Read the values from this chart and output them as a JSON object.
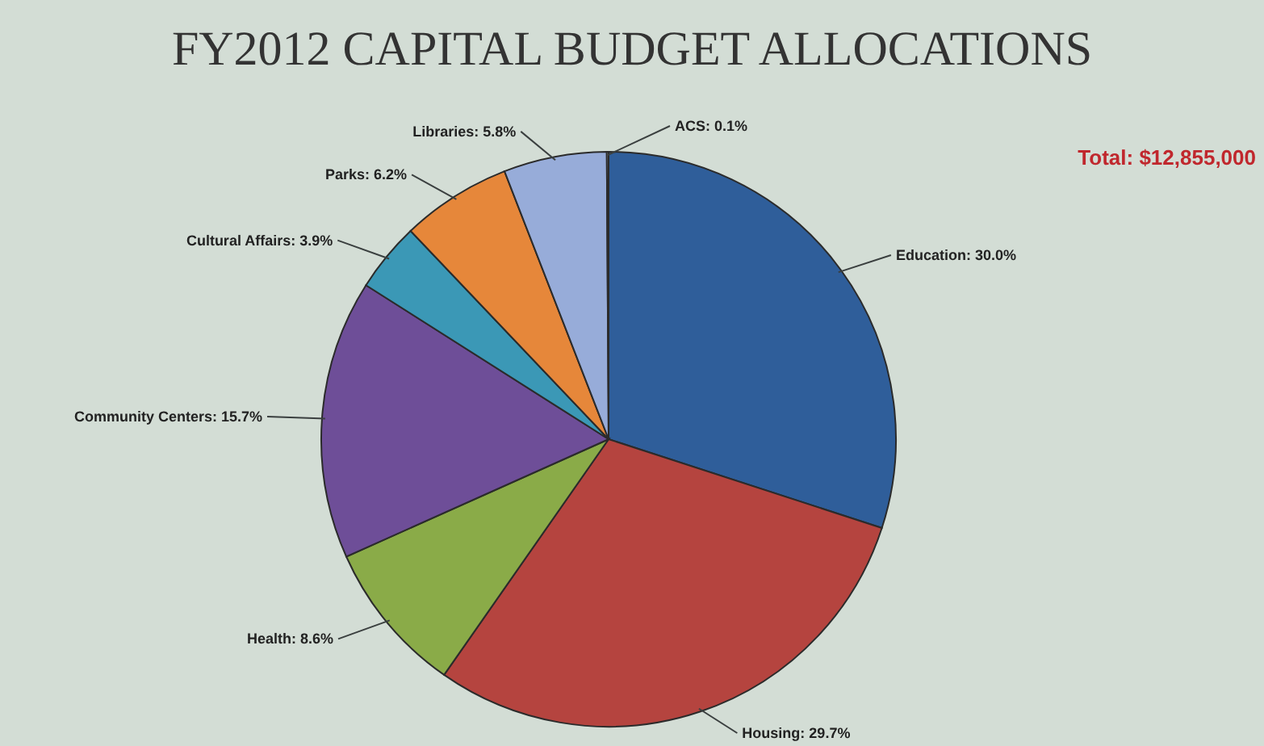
{
  "chart_data": {
    "type": "pie",
    "title": "FY2012 CAPITAL BUDGET ALLOCATIONS",
    "categories": [
      "Education",
      "Housing",
      "Health",
      "Community Centers",
      "Cultural Affairs",
      "Parks",
      "Libraries",
      "ACS"
    ],
    "values": [
      30.0,
      29.7,
      8.6,
      15.7,
      3.9,
      6.2,
      5.8,
      0.1
    ],
    "value_labels": [
      "30.0%",
      "29.7%",
      "8.6%",
      "15.7%",
      "3.9%",
      "6.2%",
      "5.8%",
      "0.1%"
    ],
    "colors": [
      "#2f5e9a",
      "#b5443f",
      "#8aab48",
      "#6e4e98",
      "#3b98b6",
      "#e6873a",
      "#97acd9",
      "#c8d4e6"
    ],
    "annotations": [
      "Total: $12,855,000"
    ],
    "legend": false
  }
}
